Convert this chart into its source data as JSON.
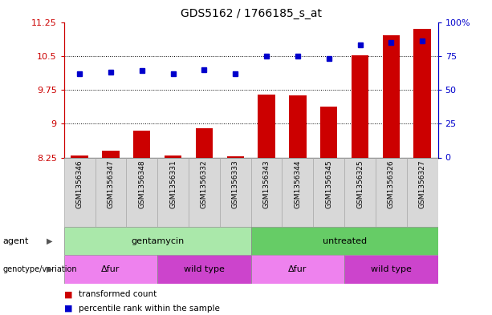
{
  "title": "GDS5162 / 1766185_s_at",
  "samples": [
    "GSM1356346",
    "GSM1356347",
    "GSM1356348",
    "GSM1356331",
    "GSM1356332",
    "GSM1356333",
    "GSM1356343",
    "GSM1356344",
    "GSM1356345",
    "GSM1356325",
    "GSM1356326",
    "GSM1356327"
  ],
  "transformed_count": [
    8.3,
    8.4,
    8.85,
    8.3,
    8.9,
    8.27,
    9.65,
    9.62,
    9.38,
    10.52,
    10.95,
    11.1
  ],
  "percentile_rank_pct": [
    62,
    63,
    64,
    62,
    65,
    62,
    75,
    75,
    73,
    83,
    85,
    86
  ],
  "ymin": 8.25,
  "ymax": 11.25,
  "yticks": [
    8.25,
    9.0,
    9.75,
    10.5,
    11.25
  ],
  "ytick_labels": [
    "8.25",
    "9",
    "9.75",
    "10.5",
    "11.25"
  ],
  "y2min": 0,
  "y2max": 100,
  "y2ticks": [
    0,
    25,
    50,
    75,
    100
  ],
  "y2tick_labels": [
    "0",
    "25",
    "50",
    "75",
    "100%"
  ],
  "agent_groups": [
    {
      "label": "gentamycin",
      "start": 0,
      "end": 6,
      "color": "#aae8aa"
    },
    {
      "label": "untreated",
      "start": 6,
      "end": 12,
      "color": "#66cc66"
    }
  ],
  "genotype_groups": [
    {
      "label": "Δfur",
      "start": 0,
      "end": 3,
      "color": "#ee82ee"
    },
    {
      "label": "wild type",
      "start": 3,
      "end": 6,
      "color": "#cc44cc"
    },
    {
      "label": "Δfur",
      "start": 6,
      "end": 9,
      "color": "#ee82ee"
    },
    {
      "label": "wild type",
      "start": 9,
      "end": 12,
      "color": "#cc44cc"
    }
  ],
  "bar_color": "#cc0000",
  "dot_color": "#0000cc",
  "tick_color_left": "#cc0000",
  "tick_color_right": "#0000cc",
  "legend_items": [
    {
      "color": "#cc0000",
      "label": "transformed count"
    },
    {
      "color": "#0000cc",
      "label": "percentile rank within the sample"
    }
  ]
}
